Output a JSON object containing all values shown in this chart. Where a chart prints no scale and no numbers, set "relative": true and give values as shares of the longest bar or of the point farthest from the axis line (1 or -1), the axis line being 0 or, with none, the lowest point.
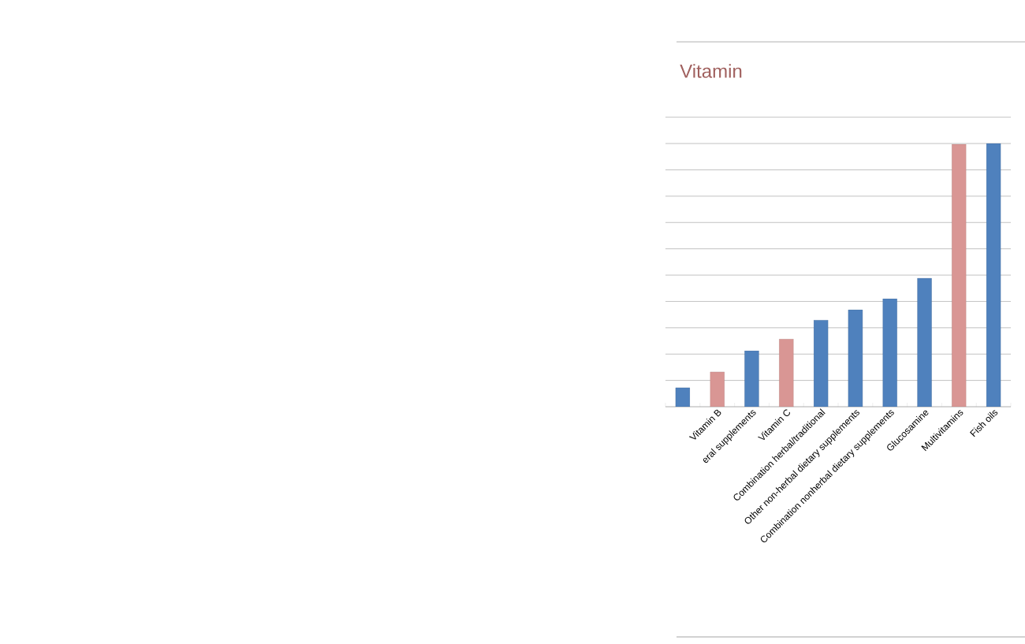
{
  "chart_data": {
    "type": "bar",
    "title": "Vitamin",
    "relative": true,
    "grid": "y",
    "categories": [
      null,
      "Vitamin B",
      "eral supplements",
      "Vitamin C",
      "Combination herbal/traditional",
      "Other non-herbal dietary supplements",
      "Combination nonherbal dietary supplements",
      "Glucosamine",
      "Multivitamins",
      "Fish oils"
    ],
    "values": [
      0.072,
      0.132,
      0.213,
      0.257,
      0.329,
      0.368,
      0.41,
      0.488,
      0.997,
      1
    ],
    "colors": [
      "#4f81bd",
      "#d99694",
      "#4f81bd",
      "#d99694",
      "#4f81bd",
      "#4f81bd",
      "#4f81bd",
      "#4f81bd",
      "#d99694",
      "#4f81bd"
    ]
  }
}
